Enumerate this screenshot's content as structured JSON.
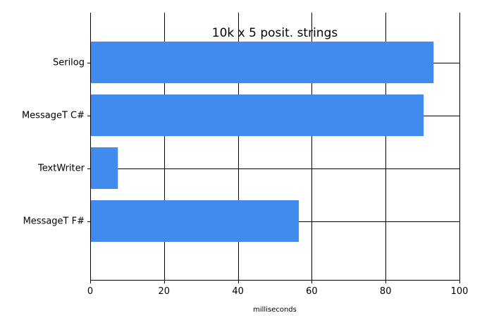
{
  "chart_data": {
    "type": "bar",
    "orientation": "horizontal",
    "title": "10k x 5 posit. strings",
    "xlabel": "milliseconds",
    "ylabel": "",
    "categories": [
      "Serilog",
      "MessageT C#",
      "TextWriter",
      "MessageT F#"
    ],
    "values": [
      93,
      90.3,
      7.5,
      56.5
    ],
    "xlim": [
      0,
      100
    ],
    "xticks": [
      0,
      20,
      40,
      60,
      80,
      100
    ],
    "grid": true,
    "legend": "none",
    "bar_color": "#428bee"
  }
}
